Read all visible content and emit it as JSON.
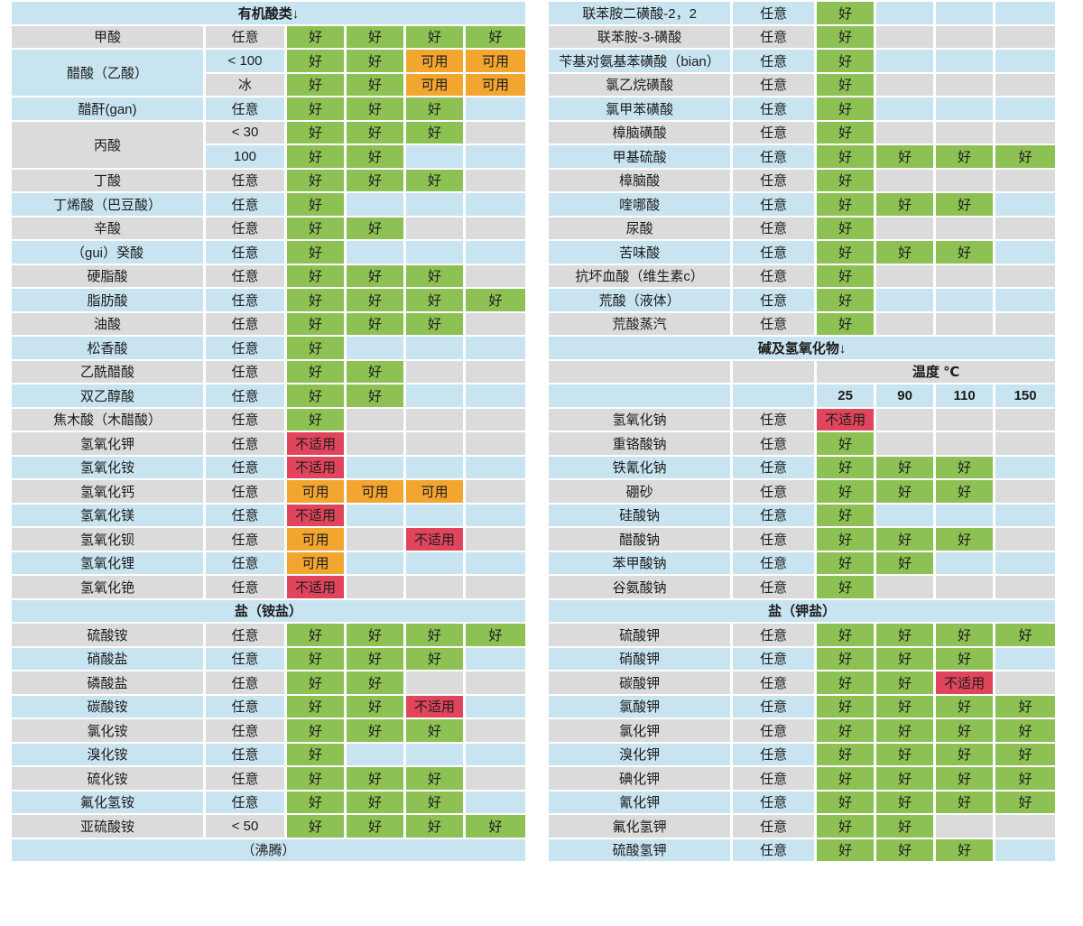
{
  "palette": {
    "good_green": "#8dc153",
    "usable_orange": "#f2a52f",
    "unsuitable_red": "#e0455c",
    "row_blue": "#c8e4f0",
    "row_gray": "#dbdbdb",
    "separator_white": "#ffffff",
    "text": "#1c1c1c"
  },
  "rating_labels": {
    "good": "好",
    "usable": "可用",
    "unsuitable": "不适用"
  },
  "left_table": {
    "rows": [
      {
        "kind": "section",
        "label": "有机酸类↓"
      },
      {
        "kind": "data",
        "name": "甲酸",
        "cond": "任意",
        "bg": "gray",
        "cells": [
          "good",
          "good",
          "good",
          "good"
        ]
      },
      {
        "kind": "data",
        "name": "醋酸（乙酸）",
        "span": 2,
        "name_bg": "blue",
        "cond": "< 100",
        "bg": "blue",
        "cells": [
          "good",
          "good",
          "usable",
          "usable"
        ]
      },
      {
        "kind": "data",
        "name": null,
        "cond": "冰",
        "bg": "gray",
        "cells": [
          "good",
          "good",
          "usable",
          "usable"
        ]
      },
      {
        "kind": "data",
        "name": "醋酐(gan)",
        "cond": "任意",
        "bg": "blue",
        "cells": [
          "good",
          "good",
          "good",
          ""
        ]
      },
      {
        "kind": "data",
        "name": "丙酸",
        "span": 2,
        "name_bg": "gray",
        "cond": "< 30",
        "bg": "gray",
        "cells": [
          "good",
          "good",
          "good",
          ""
        ]
      },
      {
        "kind": "data",
        "name": null,
        "cond": "100",
        "bg": "blue",
        "cells": [
          "good",
          "good",
          "",
          ""
        ]
      },
      {
        "kind": "data",
        "name": "丁酸",
        "cond": "任意",
        "bg": "gray",
        "cells": [
          "good",
          "good",
          "good",
          ""
        ]
      },
      {
        "kind": "data",
        "name": "丁烯酸（巴豆酸）",
        "cond": "任意",
        "bg": "blue",
        "cells": [
          "good",
          "",
          "",
          ""
        ]
      },
      {
        "kind": "data",
        "name": "辛酸",
        "cond": "任意",
        "bg": "gray",
        "cells": [
          "good",
          "good",
          "",
          ""
        ]
      },
      {
        "kind": "data",
        "name": "（gui）癸酸",
        "cond": "任意",
        "bg": "blue",
        "cells": [
          "good",
          "",
          "",
          ""
        ]
      },
      {
        "kind": "data",
        "name": "硬脂酸",
        "cond": "任意",
        "bg": "gray",
        "cells": [
          "good",
          "good",
          "good",
          ""
        ]
      },
      {
        "kind": "data",
        "name": "脂肪酸",
        "cond": "任意",
        "bg": "blue",
        "cells": [
          "good",
          "good",
          "good",
          "good"
        ]
      },
      {
        "kind": "data",
        "name": "油酸",
        "cond": "任意",
        "bg": "gray",
        "cells": [
          "good",
          "good",
          "good",
          ""
        ]
      },
      {
        "kind": "data",
        "name": "松香酸",
        "cond": "任意",
        "bg": "blue",
        "cells": [
          "good",
          "",
          "",
          ""
        ]
      },
      {
        "kind": "data",
        "name": "乙酰醋酸",
        "cond": "任意",
        "bg": "gray",
        "cells": [
          "good",
          "good",
          "",
          ""
        ]
      },
      {
        "kind": "data",
        "name": "双乙醇酸",
        "cond": "任意",
        "bg": "blue",
        "cells": [
          "good",
          "good",
          "",
          ""
        ]
      },
      {
        "kind": "data",
        "name": "焦木酸（木醋酸）",
        "cond": "任意",
        "bg": "gray",
        "cells": [
          "good",
          "",
          "",
          ""
        ]
      },
      {
        "kind": "data",
        "name": "氢氧化钾",
        "cond": "任意",
        "bg": "gray",
        "cells": [
          "unsuitable",
          "",
          "",
          ""
        ]
      },
      {
        "kind": "data",
        "name": "氢氧化铵",
        "cond": "任意",
        "bg": "blue",
        "cells": [
          "unsuitable",
          "",
          "",
          ""
        ]
      },
      {
        "kind": "data",
        "name": "氢氧化钙",
        "cond": "任意",
        "bg": "gray",
        "cells": [
          "usable",
          "usable",
          "usable",
          ""
        ]
      },
      {
        "kind": "data",
        "name": "氢氧化镁",
        "cond": "任意",
        "bg": "blue",
        "cells": [
          "unsuitable",
          "",
          "",
          ""
        ]
      },
      {
        "kind": "data",
        "name": "氢氧化钡",
        "cond": "任意",
        "bg": "gray",
        "cells": [
          "usable",
          "",
          "unsuitable",
          ""
        ]
      },
      {
        "kind": "data",
        "name": "氢氧化锂",
        "cond": "任意",
        "bg": "blue",
        "cells": [
          "usable",
          "",
          "",
          ""
        ]
      },
      {
        "kind": "data",
        "name": "氢氧化铯",
        "cond": "任意",
        "bg": "gray",
        "cells": [
          "unsuitable",
          "",
          "",
          ""
        ]
      },
      {
        "kind": "section",
        "label": "盐（铵盐）"
      },
      {
        "kind": "data",
        "name": "硫酸铵",
        "cond": "任意",
        "bg": "gray",
        "cells": [
          "good",
          "good",
          "good",
          "good"
        ]
      },
      {
        "kind": "data",
        "name": "硝酸盐",
        "cond": "任意",
        "bg": "blue",
        "cells": [
          "good",
          "good",
          "good",
          ""
        ]
      },
      {
        "kind": "data",
        "name": "磷酸盐",
        "cond": "任意",
        "bg": "gray",
        "cells": [
          "good",
          "good",
          "",
          ""
        ]
      },
      {
        "kind": "data",
        "name": "碳酸铵",
        "cond": "任意",
        "bg": "blue",
        "cells": [
          "good",
          "good",
          "unsuitable",
          ""
        ]
      },
      {
        "kind": "data",
        "name": "氯化铵",
        "cond": "任意",
        "bg": "gray",
        "cells": [
          "good",
          "good",
          "good",
          ""
        ]
      },
      {
        "kind": "data",
        "name": "溴化铵",
        "cond": "任意",
        "bg": "blue",
        "cells": [
          "good",
          "",
          "",
          ""
        ]
      },
      {
        "kind": "data",
        "name": "硫化铵",
        "cond": "任意",
        "bg": "gray",
        "cells": [
          "good",
          "good",
          "good",
          ""
        ]
      },
      {
        "kind": "data",
        "name": "氟化氢铵",
        "cond": "任意",
        "bg": "blue",
        "cells": [
          "good",
          "good",
          "good",
          ""
        ]
      },
      {
        "kind": "data",
        "name": "亚硫酸铵",
        "cond": "< 50",
        "bg": "gray",
        "cells": [
          "good",
          "good",
          "good",
          "good"
        ]
      },
      {
        "kind": "note",
        "label": "（沸腾）"
      }
    ]
  },
  "right_table": {
    "temp_header_label": "温度 ℃",
    "temp_columns": [
      "25",
      "90",
      "110",
      "150"
    ],
    "rows": [
      {
        "kind": "data",
        "name": "联苯胺二磺酸-2，2",
        "cond": "任意",
        "bg": "blue",
        "cells": [
          "good",
          "",
          "",
          ""
        ]
      },
      {
        "kind": "data",
        "name": "联苯胺-3-磺酸",
        "cond": "任意",
        "bg": "gray",
        "cells": [
          "good",
          "",
          "",
          ""
        ]
      },
      {
        "kind": "data",
        "name": "苄基对氨基苯磺酸（bian）",
        "cond": "任意",
        "bg": "blue",
        "cells": [
          "good",
          "",
          "",
          ""
        ]
      },
      {
        "kind": "data",
        "name": "氯乙烷磺酸",
        "cond": "任意",
        "bg": "gray",
        "cells": [
          "good",
          "",
          "",
          ""
        ]
      },
      {
        "kind": "data",
        "name": "氯甲苯磺酸",
        "cond": "任意",
        "bg": "blue",
        "cells": [
          "good",
          "",
          "",
          ""
        ]
      },
      {
        "kind": "data",
        "name": "樟脑磺酸",
        "cond": "任意",
        "bg": "gray",
        "cells": [
          "good",
          "",
          "",
          ""
        ]
      },
      {
        "kind": "data",
        "name": "甲基硫酸",
        "cond": "任意",
        "bg": "blue",
        "cells": [
          "good",
          "good",
          "good",
          "good"
        ]
      },
      {
        "kind": "data",
        "name": "樟脑酸",
        "cond": "任意",
        "bg": "gray",
        "cells": [
          "good",
          "",
          "",
          ""
        ]
      },
      {
        "kind": "data",
        "name": "喹哪酸",
        "cond": "任意",
        "bg": "blue",
        "cells": [
          "good",
          "good",
          "good",
          ""
        ]
      },
      {
        "kind": "data",
        "name": "尿酸",
        "cond": "任意",
        "bg": "gray",
        "cells": [
          "good",
          "",
          "",
          ""
        ]
      },
      {
        "kind": "data",
        "name": "苦味酸",
        "cond": "任意",
        "bg": "blue",
        "cells": [
          "good",
          "good",
          "good",
          ""
        ]
      },
      {
        "kind": "data",
        "name": "抗坏血酸（维生素c）",
        "cond": "任意",
        "bg": "gray",
        "cells": [
          "good",
          "",
          "",
          ""
        ]
      },
      {
        "kind": "data",
        "name": "荒酸（液体）",
        "cond": "任意",
        "bg": "blue",
        "cells": [
          "good",
          "",
          "",
          ""
        ]
      },
      {
        "kind": "data",
        "name": "荒酸蒸汽",
        "cond": "任意",
        "bg": "gray",
        "cells": [
          "good",
          "",
          "",
          ""
        ]
      },
      {
        "kind": "section",
        "label": "碱及氢氧化物↓"
      },
      {
        "kind": "temp_header",
        "bg": "gray"
      },
      {
        "kind": "temp_cols",
        "bg": "blue"
      },
      {
        "kind": "data",
        "name": "氢氧化钠",
        "cond": "任意",
        "bg": "gray",
        "cells": [
          "unsuitable",
          "",
          "",
          ""
        ]
      },
      {
        "kind": "data",
        "name": "重铬酸钠",
        "cond": "任意",
        "bg": "gray",
        "cells": [
          "good",
          "",
          "",
          ""
        ]
      },
      {
        "kind": "data",
        "name": "铁氰化钠",
        "cond": "任意",
        "bg": "blue",
        "cells": [
          "good",
          "good",
          "good",
          ""
        ]
      },
      {
        "kind": "data",
        "name": "硼砂",
        "cond": "任意",
        "bg": "gray",
        "cells": [
          "good",
          "good",
          "good",
          ""
        ]
      },
      {
        "kind": "data",
        "name": "硅酸钠",
        "cond": "任意",
        "bg": "blue",
        "cells": [
          "good",
          "",
          "",
          ""
        ]
      },
      {
        "kind": "data",
        "name": "醋酸钠",
        "cond": "任意",
        "bg": "gray",
        "cells": [
          "good",
          "good",
          "good",
          ""
        ]
      },
      {
        "kind": "data",
        "name": "苯甲酸钠",
        "cond": "任意",
        "bg": "blue",
        "cells": [
          "good",
          "good",
          "",
          ""
        ]
      },
      {
        "kind": "data",
        "name": "谷氨酸钠",
        "cond": "任意",
        "bg": "gray",
        "cells": [
          "good",
          "",
          "",
          ""
        ]
      },
      {
        "kind": "section",
        "label": "盐（钾盐）"
      },
      {
        "kind": "data",
        "name": "硫酸钾",
        "cond": "任意",
        "bg": "gray",
        "cells": [
          "good",
          "good",
          "good",
          "good"
        ]
      },
      {
        "kind": "data",
        "name": "硝酸钾",
        "cond": "任意",
        "bg": "blue",
        "cells": [
          "good",
          "good",
          "good",
          ""
        ]
      },
      {
        "kind": "data",
        "name": "碳酸钾",
        "cond": "任意",
        "bg": "gray",
        "cells": [
          "good",
          "good",
          "unsuitable",
          ""
        ]
      },
      {
        "kind": "data",
        "name": "氯酸钾",
        "cond": "任意",
        "bg": "blue",
        "cells": [
          "good",
          "good",
          "good",
          "good"
        ]
      },
      {
        "kind": "data",
        "name": "氯化钾",
        "cond": "任意",
        "bg": "gray",
        "cells": [
          "good",
          "good",
          "good",
          "good"
        ]
      },
      {
        "kind": "data",
        "name": "溴化钾",
        "cond": "任意",
        "bg": "blue",
        "cells": [
          "good",
          "good",
          "good",
          "good"
        ]
      },
      {
        "kind": "data",
        "name": "碘化钾",
        "cond": "任意",
        "bg": "gray",
        "cells": [
          "good",
          "good",
          "good",
          "good"
        ]
      },
      {
        "kind": "data",
        "name": "氰化钾",
        "cond": "任意",
        "bg": "blue",
        "cells": [
          "good",
          "good",
          "good",
          "good"
        ]
      },
      {
        "kind": "data",
        "name": "氟化氢钾",
        "cond": "任意",
        "bg": "gray",
        "cells": [
          "good",
          "good",
          "",
          ""
        ]
      },
      {
        "kind": "data",
        "name": "硫酸氢钾",
        "cond": "任意",
        "bg": "blue",
        "cells": [
          "good",
          "good",
          "good",
          ""
        ]
      }
    ]
  }
}
